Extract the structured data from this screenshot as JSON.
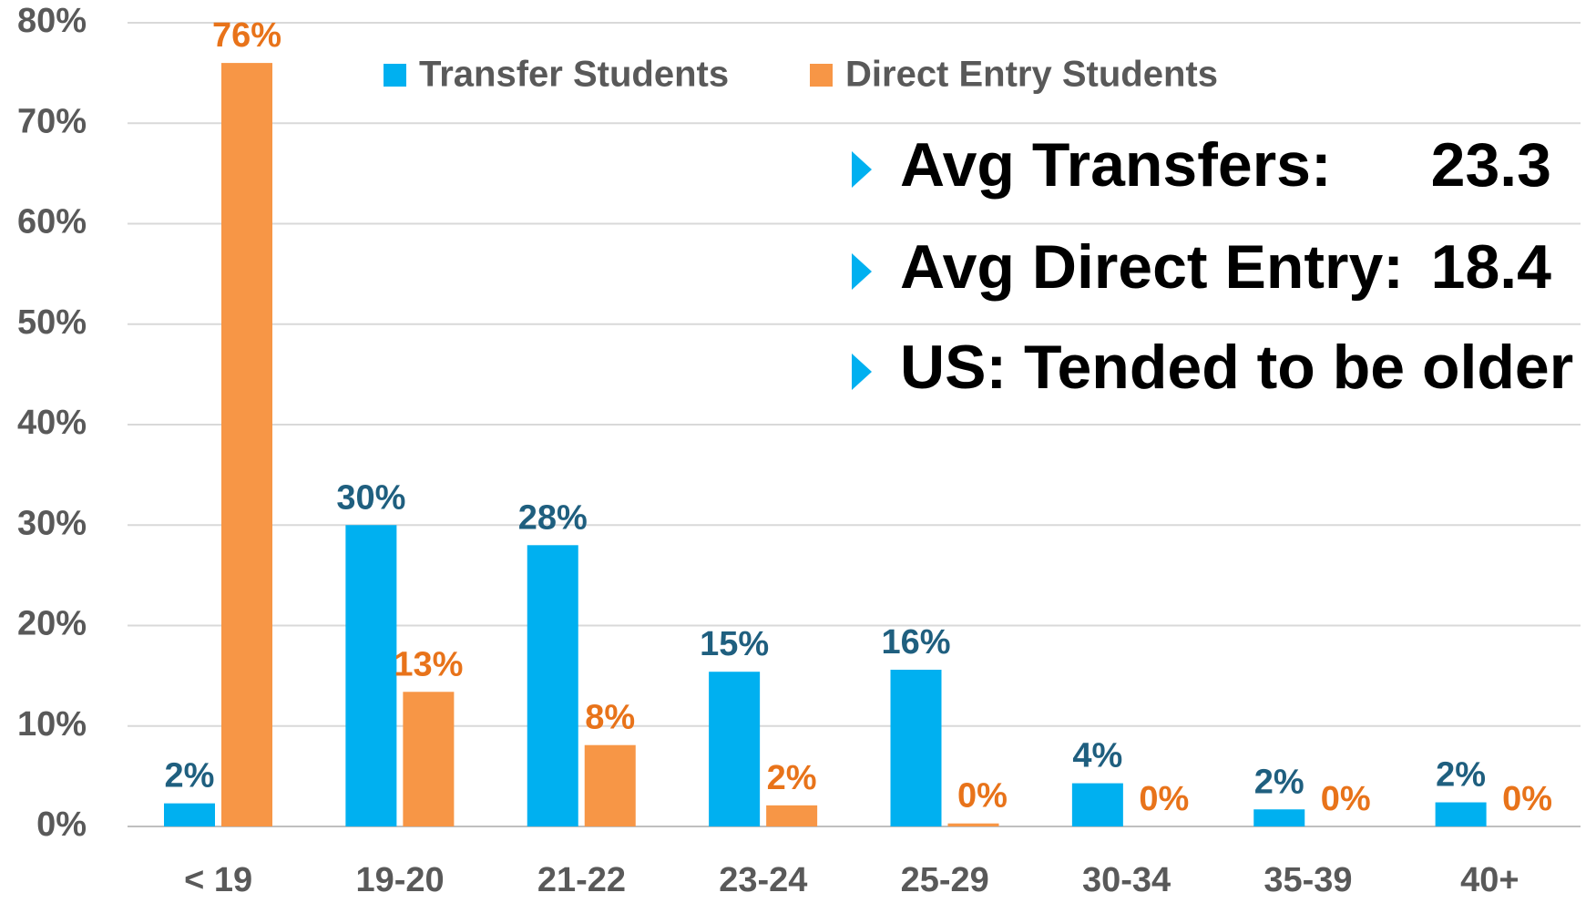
{
  "chart_data": {
    "type": "bar",
    "categories": [
      "< 19",
      "19-20",
      "21-22",
      "23-24",
      "25-29",
      "30-34",
      "35-39",
      "40+"
    ],
    "series": [
      {
        "name": "Transfer Students",
        "color": "#00b0f0",
        "label_color": "#1f5f7f",
        "values": [
          2.3,
          30,
          28,
          15.4,
          15.6,
          4.3,
          1.7,
          2.4
        ],
        "value_labels": [
          "2%",
          "30%",
          "28%",
          "15%",
          "16%",
          "4%",
          "2%",
          "2%"
        ]
      },
      {
        "name": "Direct Entry Students",
        "color": "#f79646",
        "label_color": "#e8731a",
        "values": [
          76,
          13.4,
          8.1,
          2.1,
          0.3,
          0,
          0,
          0
        ],
        "value_labels": [
          "76%",
          "13%",
          "8%",
          "2%",
          "0%",
          "0%",
          "0%",
          "0%"
        ]
      }
    ],
    "ylim": [
      0,
      80
    ],
    "yticks": [
      {
        "value": 0,
        "label": "0%"
      },
      {
        "value": 10,
        "label": "10%"
      },
      {
        "value": 20,
        "label": "20%"
      },
      {
        "value": 30,
        "label": "30%"
      },
      {
        "value": 40,
        "label": "40%"
      },
      {
        "value": 50,
        "label": "50%"
      },
      {
        "value": 60,
        "label": "60%"
      },
      {
        "value": 70,
        "label": "70%"
      },
      {
        "value": 80,
        "label": "80%"
      }
    ],
    "grid": true,
    "annotations": [
      {
        "text": "Avg Transfers:",
        "value": "23.3",
        "value_color": "#1a8fc0"
      },
      {
        "text": "Avg Direct Entry:",
        "value": "18.4",
        "value_color": "#e8731a"
      },
      {
        "text": "US: Tended to be older"
      }
    ]
  }
}
